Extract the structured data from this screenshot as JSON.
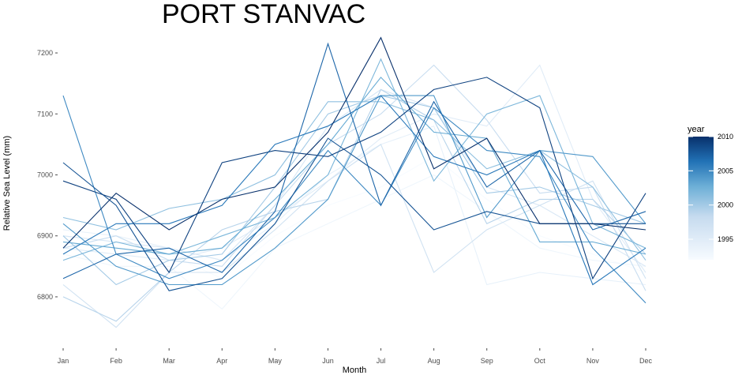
{
  "chart_data": {
    "type": "line",
    "title": "PORT STANVAC",
    "xlabel": "Month",
    "ylabel": "Relative Sea Level (mm)",
    "categories": [
      "Jan",
      "Feb",
      "Mar",
      "Apr",
      "May",
      "Jun",
      "Jul",
      "Aug",
      "Sep",
      "Oct",
      "Nov",
      "Dec"
    ],
    "ylim": [
      6730,
      7235
    ],
    "yticks": [
      6800,
      6900,
      7000,
      7100,
      7200
    ],
    "grid": false,
    "legend": {
      "title": "year",
      "position": "right",
      "type": "colorbar",
      "range": [
        1992,
        2010
      ],
      "ticks": [
        1995,
        2000,
        2005,
        2010
      ],
      "low_color": "#f7fbff",
      "high_color": "#08306b"
    },
    "series": [
      {
        "year": 1992,
        "values": [
          6900,
          6880,
          6870,
          6830,
          6900,
          6950,
          6980,
          7030,
          6960,
          6900,
          6870,
          6840
        ]
      },
      {
        "year": 1993,
        "values": [
          6870,
          6850,
          6850,
          6780,
          6880,
          6920,
          6960,
          7000,
          6940,
          6880,
          6860,
          6850
        ]
      },
      {
        "year": 1994,
        "values": [
          6910,
          6900,
          6880,
          6860,
          6920,
          7000,
          7050,
          7080,
          6820,
          6840,
          6830,
          6820
        ]
      },
      {
        "year": 1995,
        "values": [
          6880,
          6870,
          6860,
          6880,
          6930,
          6990,
          7060,
          7100,
          7080,
          7180,
          6960,
          6840
        ]
      },
      {
        "year": 1996,
        "values": [
          6900,
          6890,
          6880,
          6860,
          6950,
          7080,
          7140,
          7110,
          6980,
          6950,
          6900,
          6850
        ]
      },
      {
        "year": 1997,
        "values": [
          6820,
          6750,
          6840,
          6840,
          6910,
          6990,
          7050,
          6840,
          6910,
          6950,
          6990,
          6830
        ]
      },
      {
        "year": 1998,
        "values": [
          6880,
          6900,
          6860,
          6850,
          6950,
          7050,
          7100,
          7180,
          7090,
          6970,
          6980,
          6810
        ]
      },
      {
        "year": 1999,
        "values": [
          6800,
          6760,
          6840,
          6910,
          6940,
          6960,
          7140,
          7090,
          6920,
          6960,
          6960,
          6870
        ]
      },
      {
        "year": 2000,
        "values": [
          6900,
          6820,
          6860,
          6870,
          6980,
          7100,
          7130,
          7110,
          6970,
          6980,
          6950,
          6920
        ]
      },
      {
        "year": 2001,
        "values": [
          6930,
          6910,
          6945,
          6960,
          7000,
          7120,
          7120,
          7090,
          7010,
          7040,
          6980,
          6860
        ]
      },
      {
        "year": 2002,
        "values": [
          6860,
          6890,
          6870,
          6900,
          6930,
          7000,
          7190,
          6990,
          7100,
          7130,
          6920,
          6880
        ]
      },
      {
        "year": 2003,
        "values": [
          6890,
          6880,
          6870,
          6880,
          6960,
          7050,
          7160,
          7070,
          7060,
          6890,
          6890,
          6870
        ]
      },
      {
        "year": 2004,
        "values": [
          6920,
          6850,
          6820,
          6820,
          6880,
          6960,
          7130,
          7130,
          6930,
          7040,
          7030,
          6920
        ]
      },
      {
        "year": 2005,
        "values": [
          7130,
          6870,
          6830,
          6860,
          6930,
          7040,
          6950,
          7110,
          7040,
          7030,
          6880,
          6790
        ]
      },
      {
        "year": 2006,
        "values": [
          6870,
          6920,
          6920,
          6950,
          7050,
          7080,
          7130,
          7030,
          7000,
          7040,
          6820,
          6880
        ]
      },
      {
        "year": 2007,
        "values": [
          6830,
          6870,
          6880,
          6840,
          6940,
          7215,
          6950,
          7120,
          6980,
          7040,
          6910,
          6940
        ]
      },
      {
        "year": 2008,
        "values": [
          7020,
          6950,
          6810,
          6830,
          6920,
          7060,
          7000,
          6910,
          6940,
          6920,
          6920,
          6920
        ]
      },
      {
        "year": 2009,
        "values": [
          6990,
          6960,
          6840,
          7020,
          7040,
          7030,
          7070,
          7140,
          7160,
          7110,
          6830,
          6970
        ]
      },
      {
        "year": 2010,
        "values": [
          6880,
          6970,
          6910,
          6960,
          6980,
          7070,
          7225,
          7010,
          7060,
          6920,
          6920,
          6910
        ]
      }
    ]
  }
}
